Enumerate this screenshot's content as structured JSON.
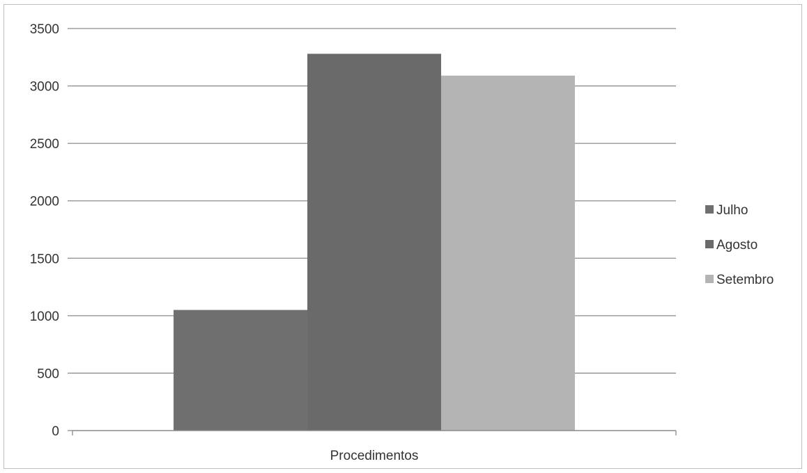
{
  "chart_data": {
    "type": "bar",
    "categories": [
      "Procedimentos"
    ],
    "series": [
      {
        "name": "Julho",
        "values": [
          1050
        ],
        "color": "#6f6f6f"
      },
      {
        "name": "Agosto",
        "values": [
          3280
        ],
        "color": "#6a6a6a"
      },
      {
        "name": "Setembro",
        "values": [
          3090
        ],
        "color": "#b4b4b4"
      }
    ],
    "title": "",
    "xlabel": "",
    "ylabel": "",
    "ylim": [
      0,
      3500
    ],
    "yticks": [
      0,
      500,
      1000,
      1500,
      2000,
      2500,
      3000,
      3500
    ],
    "grid": true,
    "legend_position": "right"
  }
}
